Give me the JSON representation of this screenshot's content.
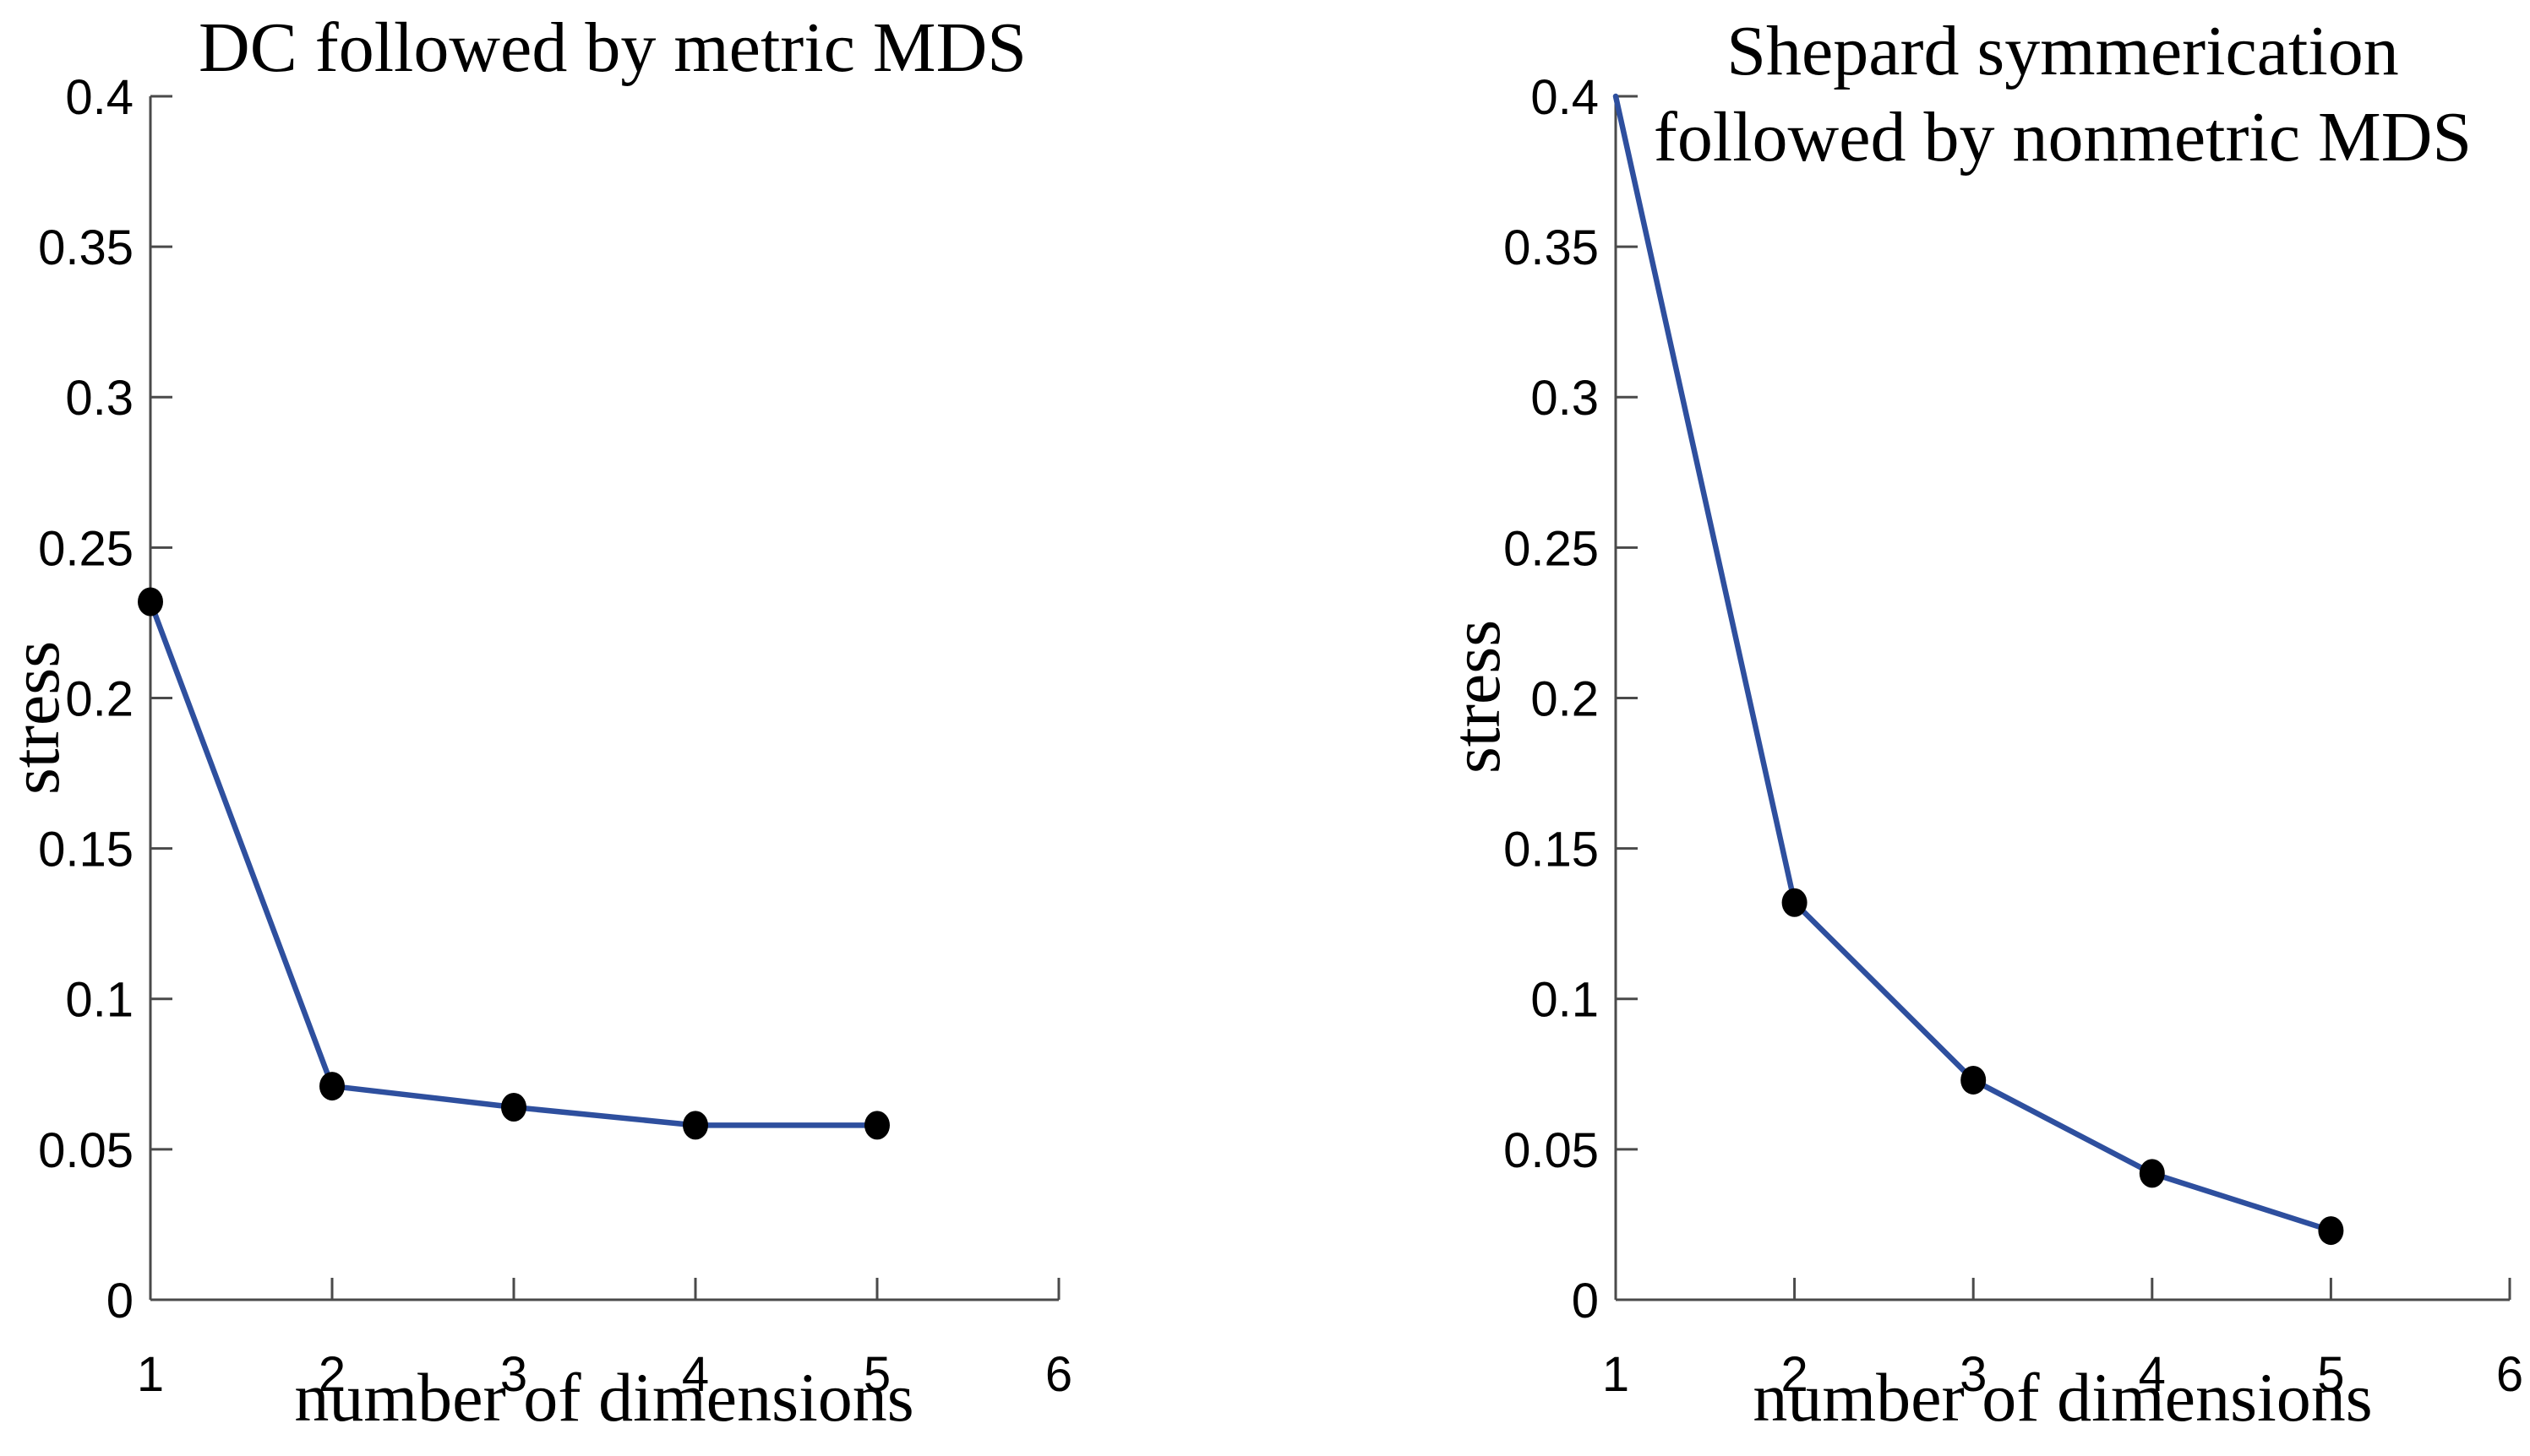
{
  "figure": {
    "background": "#ffffff",
    "line_color": "#2e4f9e",
    "marker_color": "#000000",
    "axis_color": "#4a4a4a"
  },
  "chart_data": [
    {
      "type": "line",
      "title": "DC followed by metric MDS",
      "xlabel": "number of dimensions",
      "ylabel": "stress",
      "x": [
        1,
        2,
        3,
        4,
        5
      ],
      "y": [
        0.232,
        0.071,
        0.064,
        0.058,
        0.058
      ],
      "markers": [
        true,
        true,
        true,
        true,
        true
      ],
      "xlim": [
        1,
        6
      ],
      "ylim": [
        0,
        0.4
      ],
      "xticks": [
        1,
        2,
        3,
        4,
        5,
        6
      ],
      "xtick_labels": [
        "1",
        "2",
        "3",
        "4",
        "5",
        "6"
      ],
      "yticks": [
        0,
        0.05,
        0.1,
        0.15,
        0.2,
        0.25,
        0.3,
        0.35,
        0.4
      ],
      "ytick_labels": [
        "0",
        "0.05",
        "0.1",
        "0.15",
        "0.2",
        "0.25",
        "0.3",
        "0.35",
        "0.4"
      ],
      "grid": false,
      "legend": null
    },
    {
      "type": "line",
      "title": "Shepard symmerication\nfollowed by nonmetric MDS",
      "xlabel": "number of dimensions",
      "ylabel": "stress",
      "x": [
        1,
        2,
        3,
        4,
        5
      ],
      "y": [
        0.4,
        0.132,
        0.073,
        0.042,
        0.023
      ],
      "markers": [
        false,
        true,
        true,
        true,
        true
      ],
      "xlim": [
        1,
        6
      ],
      "ylim": [
        0,
        0.4
      ],
      "xticks": [
        1,
        2,
        3,
        4,
        5,
        6
      ],
      "xtick_labels": [
        "1",
        "2",
        "3",
        "4",
        "5",
        "6"
      ],
      "yticks": [
        0,
        0.05,
        0.1,
        0.15,
        0.2,
        0.25,
        0.3,
        0.35,
        0.4
      ],
      "ytick_labels": [
        "0",
        "0.05",
        "0.1",
        "0.15",
        "0.2",
        "0.25",
        "0.3",
        "0.35",
        "0.4"
      ],
      "grid": false,
      "legend": null
    }
  ]
}
